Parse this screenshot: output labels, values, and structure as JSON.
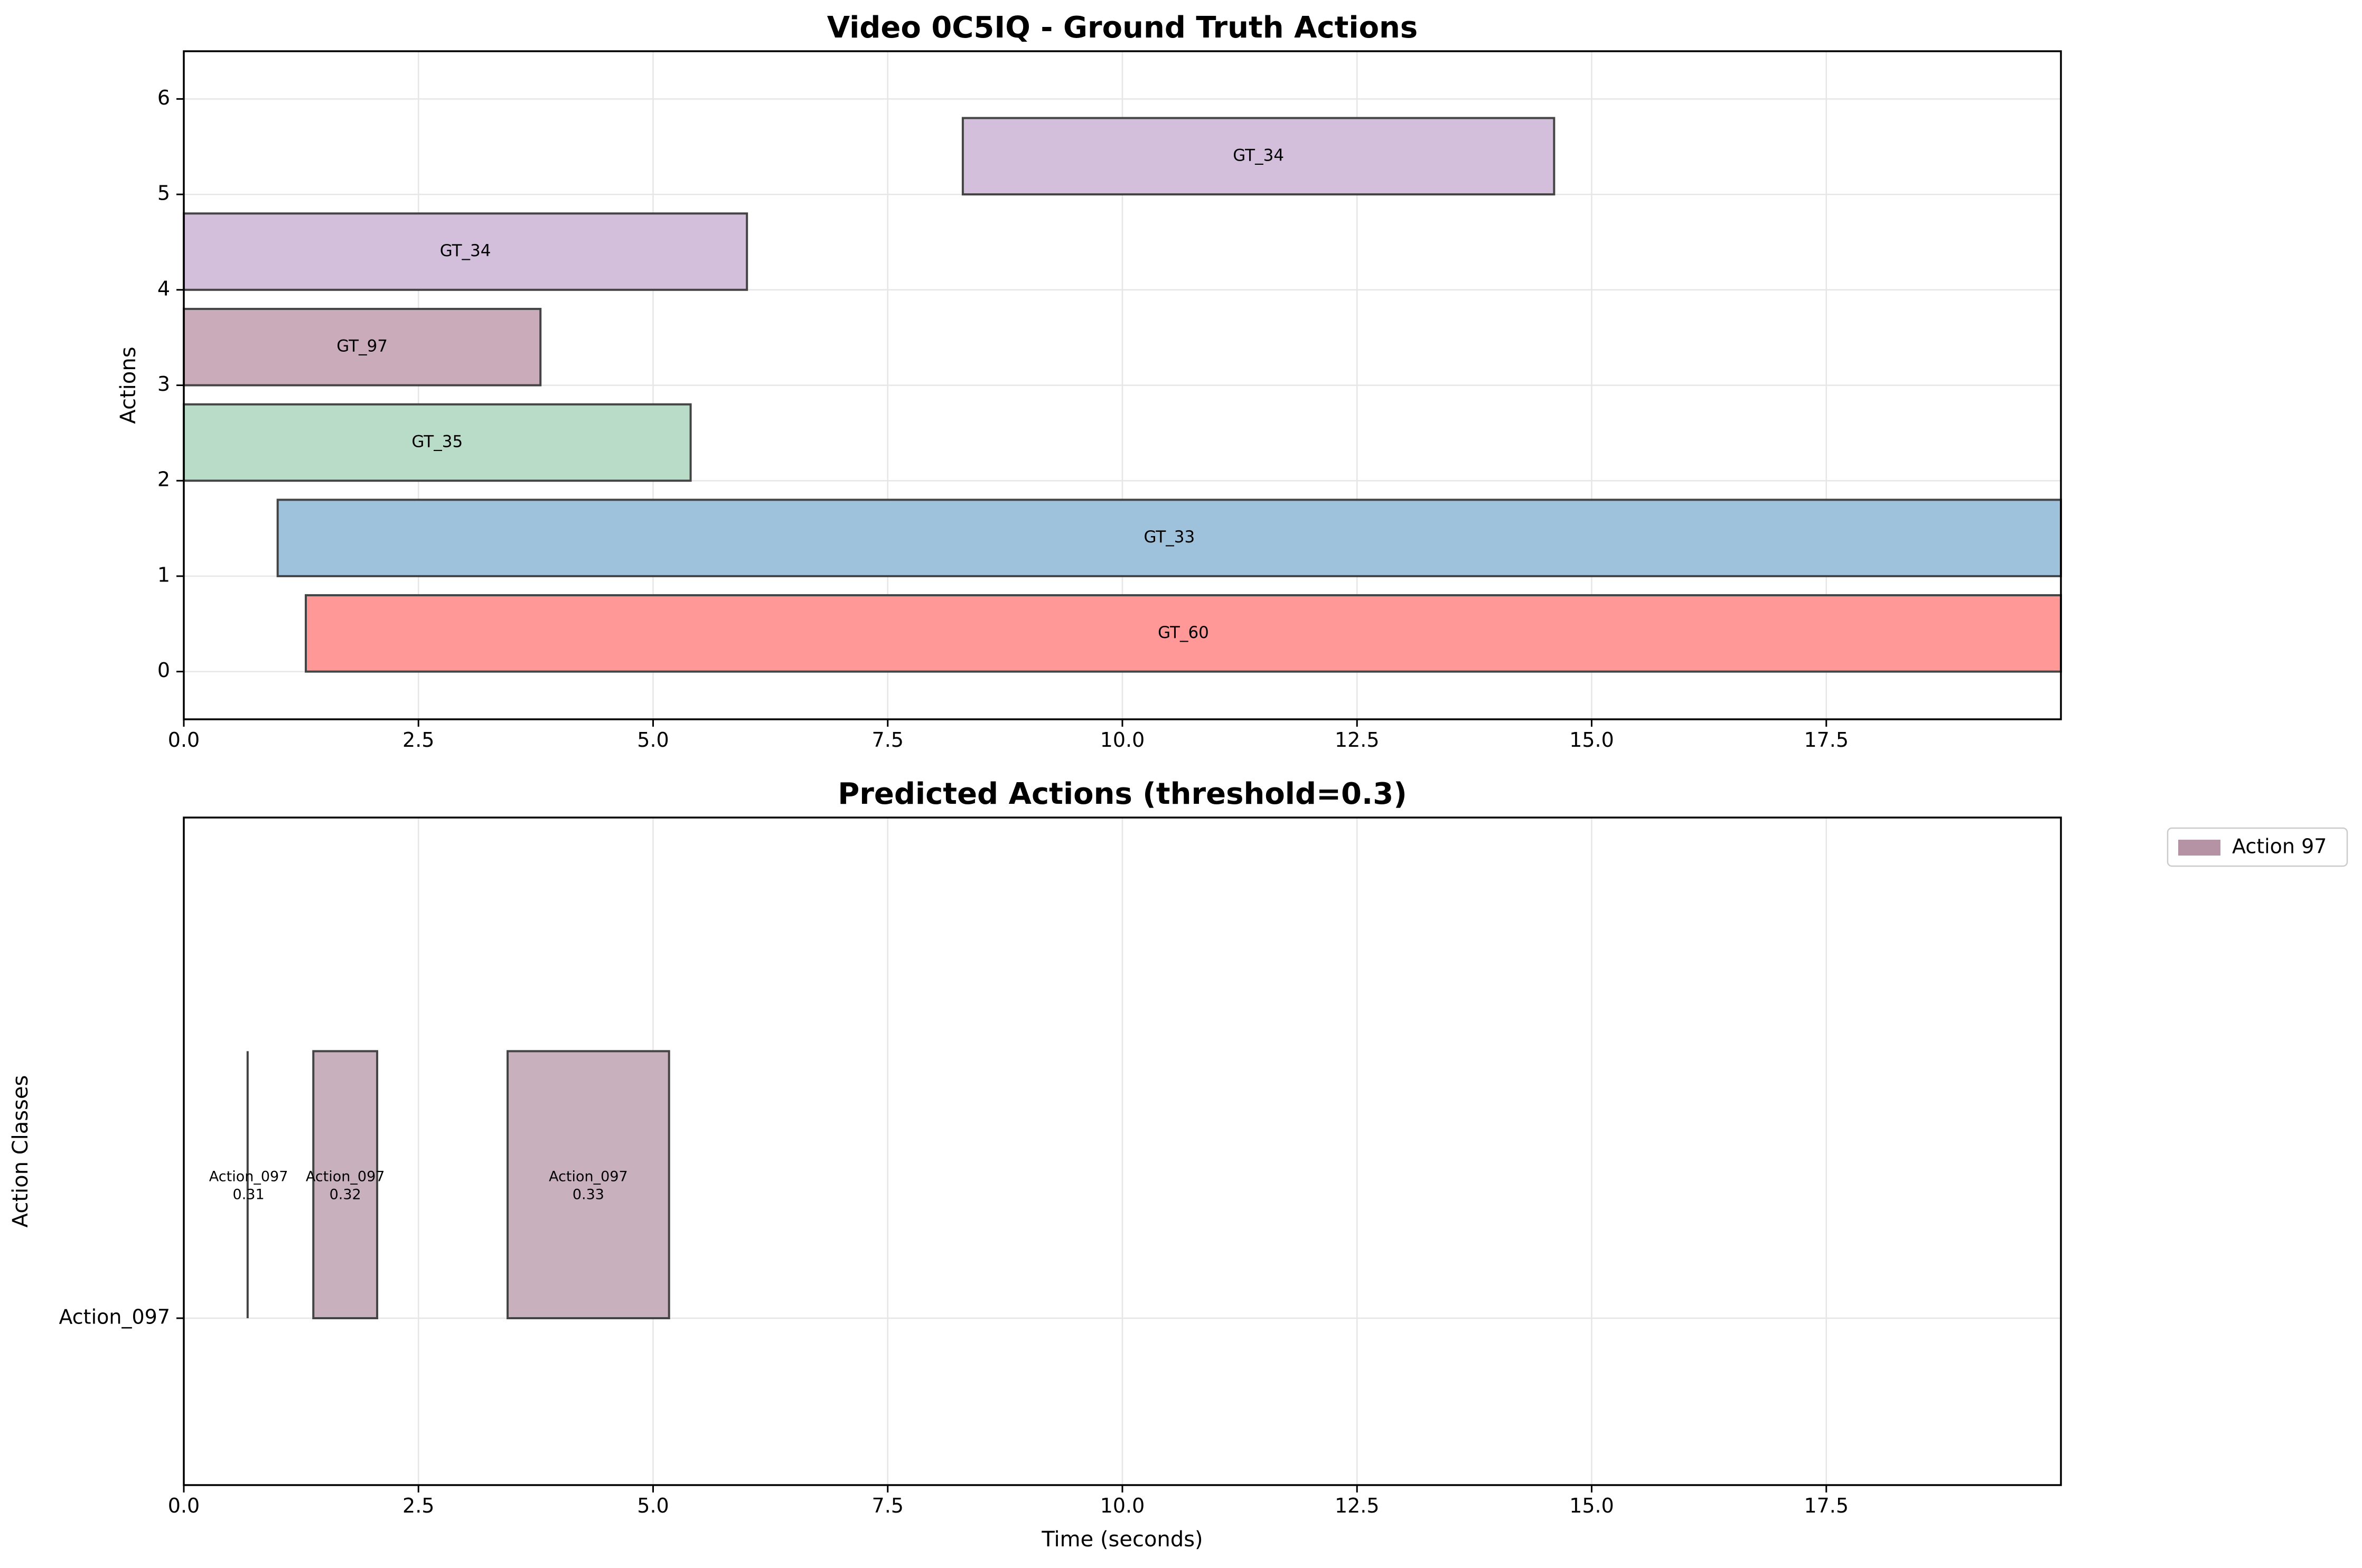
{
  "chart_data": [
    {
      "type": "bar",
      "orientation": "horizontal-timeline",
      "title": "Video 0C5IQ - Ground Truth Actions",
      "xlabel": "",
      "ylabel": "Actions",
      "xlim": [
        0,
        20
      ],
      "ylim": [
        -0.5,
        6.5
      ],
      "grid": true,
      "xticks": [
        "0.0",
        "2.5",
        "5.0",
        "7.5",
        "10.0",
        "12.5",
        "15.0",
        "17.5"
      ],
      "yticks": [
        "0",
        "1",
        "2",
        "3",
        "4",
        "5",
        "6"
      ],
      "bars": [
        {
          "label": "GT_60",
          "start": 1.3,
          "end": 20.0,
          "y0": 0,
          "y1": 0.8,
          "color": "#ff9896"
        },
        {
          "label": "GT_33",
          "start": 1.0,
          "end": 20.0,
          "y0": 1,
          "y1": 1.8,
          "color": "#9ec1dc"
        },
        {
          "label": "GT_35",
          "start": 0.0,
          "end": 5.4,
          "y0": 2,
          "y1": 2.8,
          "color": "#b8dcc8"
        },
        {
          "label": "GT_97",
          "start": 0.0,
          "end": 3.8,
          "y0": 3,
          "y1": 3.8,
          "color": "#c9abb9"
        },
        {
          "label": "GT_34",
          "start": 0.0,
          "end": 6.0,
          "y0": 4,
          "y1": 4.8,
          "color": "#d3bfdb"
        },
        {
          "label": "GT_34",
          "start": 8.3,
          "end": 14.6,
          "y0": 5,
          "y1": 5.8,
          "color": "#d3bfdb"
        }
      ]
    },
    {
      "type": "bar",
      "orientation": "horizontal-timeline",
      "title": "Predicted Actions (threshold=0.3)",
      "xlabel": "Time (seconds)",
      "ylabel": "Action Classes",
      "xlim": [
        0,
        20
      ],
      "ylim": [
        -0.5,
        1.5
      ],
      "grid": true,
      "xticks": [
        "0.0",
        "2.5",
        "5.0",
        "7.5",
        "10.0",
        "12.5",
        "15.0",
        "17.5"
      ],
      "yticks": [
        "Action_097"
      ],
      "legend": {
        "placement": "outside-top-right",
        "entries": [
          {
            "name": "Action 97",
            "color": "#b592a4"
          }
        ]
      },
      "bars": [
        {
          "label": "Action_097",
          "score": "0.31",
          "start": 0.68,
          "end": 0.7,
          "y0": 0,
          "y1": 0.8,
          "color": "#c9b0bd"
        },
        {
          "label": "Action_097",
          "score": "0.32",
          "start": 1.38,
          "end": 2.06,
          "y0": 0,
          "y1": 0.8,
          "color": "#c9b0bd"
        },
        {
          "label": "Action_097",
          "score": "0.33",
          "start": 3.45,
          "end": 5.17,
          "y0": 0,
          "y1": 0.8,
          "color": "#c9b0bd"
        }
      ]
    }
  ]
}
